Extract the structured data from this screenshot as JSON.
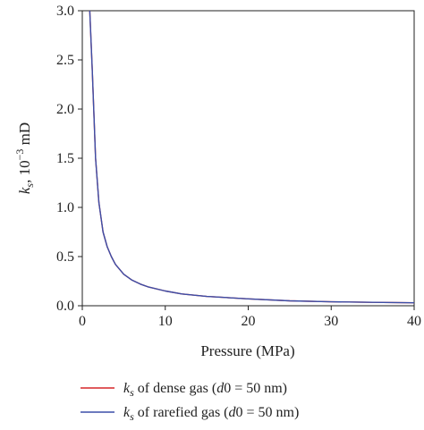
{
  "chart_data": {
    "type": "line",
    "title": "",
    "xlabel": "Pressure (MPa)",
    "ylabel": {
      "symbol": "k",
      "subscript": "s",
      "unit_prefix": ", 10",
      "exponent": "−3",
      "unit": " mD"
    },
    "xlim": [
      0,
      40
    ],
    "ylim": [
      0,
      3.0
    ],
    "x_ticks": [
      0,
      10,
      20,
      30,
      40
    ],
    "x_tick_labels": [
      "0",
      "10",
      "20",
      "30",
      "40"
    ],
    "y_ticks": [
      0,
      0.5,
      1.0,
      1.5,
      2.0,
      2.5,
      3.0
    ],
    "y_tick_labels": [
      "0.0",
      "0.5",
      "1.0",
      "1.5",
      "2.0",
      "2.5",
      "3.0"
    ],
    "grid": false,
    "legend_position": "bottom",
    "series": [
      {
        "legend": {
          "symbol": "k",
          "subscript": "s",
          "text_before_italic": " of dense gas (",
          "italic_part": "d",
          "text_after_italic": "0 = 50 nm)"
        },
        "color": "#d62728",
        "x": [
          0.9,
          1.2,
          1.6,
          2,
          2.5,
          3,
          3.5,
          4,
          5,
          6,
          7,
          8,
          10,
          12,
          15,
          20,
          25,
          30,
          35,
          40
        ],
        "y": [
          3.0,
          2.4,
          1.5,
          1.05,
          0.75,
          0.6,
          0.5,
          0.42,
          0.32,
          0.26,
          0.22,
          0.19,
          0.15,
          0.12,
          0.095,
          0.07,
          0.05,
          0.04,
          0.035,
          0.03
        ]
      },
      {
        "legend": {
          "symbol": "k",
          "subscript": "s",
          "text_before_italic": " of rarefied gas (",
          "italic_part": "d",
          "text_after_italic": "0 = 50 nm)"
        },
        "color": "#3b4fa8",
        "x": [
          0.9,
          1.2,
          1.6,
          2,
          2.5,
          3,
          3.5,
          4,
          5,
          6,
          7,
          8,
          10,
          12,
          15,
          20,
          25,
          30,
          35,
          40
        ],
        "y": [
          3.0,
          2.4,
          1.5,
          1.05,
          0.75,
          0.6,
          0.5,
          0.42,
          0.32,
          0.26,
          0.22,
          0.19,
          0.15,
          0.12,
          0.095,
          0.07,
          0.05,
          0.04,
          0.035,
          0.03
        ]
      }
    ]
  }
}
